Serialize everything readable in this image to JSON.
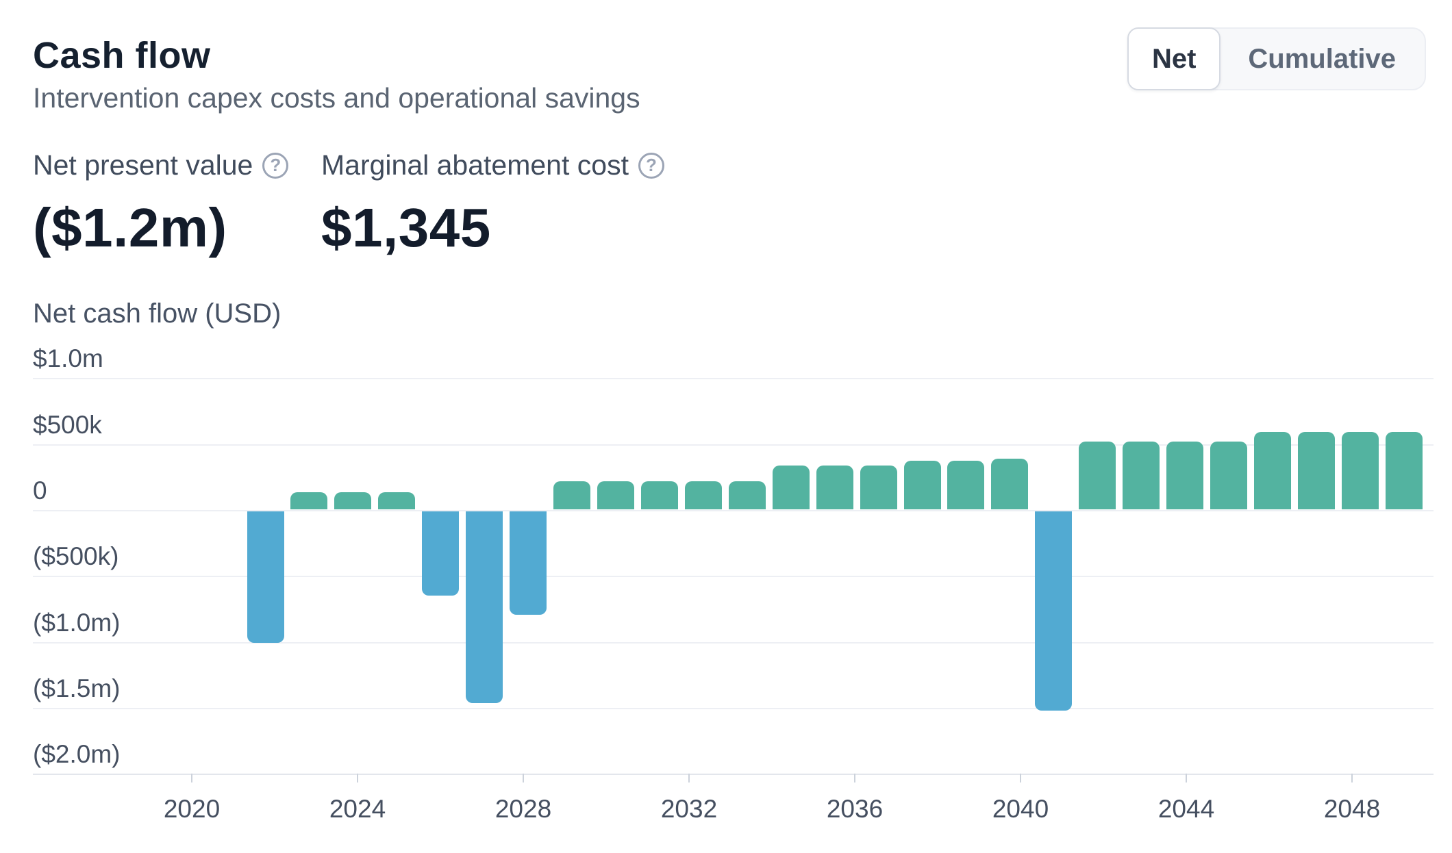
{
  "header": {
    "title": "Cash flow",
    "subtitle": "Intervention capex costs and operational savings",
    "toggle": {
      "options": [
        "Net",
        "Cumulative"
      ],
      "selected": "Net"
    }
  },
  "metrics": [
    {
      "label": "Net present value",
      "value": "($1.2m)",
      "icon": "question-circle-icon"
    },
    {
      "label": "Marginal abatement cost",
      "value": "$1,345",
      "icon": "question-circle-icon"
    }
  ],
  "chart_data": {
    "type": "bar",
    "title": "Net cash flow (USD)",
    "xlabel": "",
    "ylabel": "Net cash flow (USD)",
    "x": [
      2022,
      2023,
      2024,
      2025,
      2026,
      2027,
      2028,
      2029,
      2030,
      2031,
      2032,
      2033,
      2034,
      2035,
      2036,
      2037,
      2038,
      2039,
      2040,
      2041,
      2042,
      2043,
      2044,
      2045,
      2046,
      2047,
      2048
    ],
    "values": [
      -1005000,
      135000,
      135000,
      135000,
      -650000,
      -1465000,
      -795000,
      220000,
      220000,
      220000,
      220000,
      220000,
      340000,
      340000,
      340000,
      375000,
      375000,
      390000,
      -1520000,
      520000,
      520000,
      520000,
      520000,
      590000,
      590000,
      590000,
      590000
    ],
    "y_ticks": [
      {
        "value": 1000000,
        "label": "$1.0m"
      },
      {
        "value": 500000,
        "label": "$500k"
      },
      {
        "value": 0,
        "label": "0"
      },
      {
        "value": -500000,
        "label": "($500k)"
      },
      {
        "value": -1000000,
        "label": "($1.0m)"
      },
      {
        "value": -1500000,
        "label": "($1.5m)"
      },
      {
        "value": -2000000,
        "label": "($2.0m)"
      }
    ],
    "x_ticks": [
      "2020",
      "2024",
      "2028",
      "2032",
      "2036",
      "2040",
      "2044",
      "2048"
    ],
    "ylim": [
      -2000000,
      1000000
    ],
    "grid": true,
    "legend": "none",
    "positive_color": "#53b3a0",
    "negative_color": "#52aad2"
  }
}
